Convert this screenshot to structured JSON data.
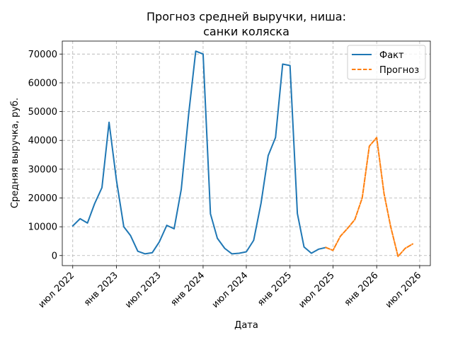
{
  "chart_data": {
    "type": "line",
    "title_line1": "Прогноз средней выручки, ниша:",
    "title_line2": "санки коляска",
    "xlabel": "Дата",
    "ylabel": "Средняя выручка, руб.",
    "grid": true,
    "legend_position": "top-right",
    "xlim": [
      "2022-05-18",
      "2026-08-15"
    ],
    "ylim": [
      -3500,
      74500
    ],
    "x_tick_dates": [
      "2022-07-01",
      "2023-01-01",
      "2023-07-01",
      "2024-01-01",
      "2024-07-01",
      "2025-01-01",
      "2025-07-01",
      "2026-01-01",
      "2026-07-01"
    ],
    "x_tick_labels": [
      "июл 2022",
      "янв 2023",
      "июл 2023",
      "янв 2024",
      "июл 2024",
      "янв 2025",
      "июл 2025",
      "янв 2026",
      "июл 2026"
    ],
    "y_ticks": [
      0,
      10000,
      20000,
      30000,
      40000,
      50000,
      60000,
      70000
    ],
    "y_tick_labels": [
      "0",
      "10000",
      "20000",
      "30000",
      "40000",
      "50000",
      "60000",
      "70000"
    ],
    "series": [
      {
        "name": "Факт",
        "color": "#1f77b4",
        "style": "solid",
        "x": [
          "2022-07-01",
          "2022-08-01",
          "2022-09-01",
          "2022-10-01",
          "2022-11-01",
          "2022-12-01",
          "2023-01-01",
          "2023-02-01",
          "2023-03-01",
          "2023-04-01",
          "2023-05-01",
          "2023-06-01",
          "2023-07-01",
          "2023-08-01",
          "2023-09-01",
          "2023-10-01",
          "2023-11-01",
          "2023-12-01",
          "2024-01-01",
          "2024-02-01",
          "2024-03-01",
          "2024-04-01",
          "2024-05-01",
          "2024-06-01",
          "2024-07-01",
          "2024-08-01",
          "2024-09-01",
          "2024-10-01",
          "2024-11-01",
          "2024-12-01",
          "2025-01-01",
          "2025-02-01",
          "2025-03-01",
          "2025-04-01",
          "2025-05-01",
          "2025-06-01"
        ],
        "values": [
          10300,
          12800,
          11300,
          18000,
          23600,
          46300,
          26200,
          10000,
          7000,
          1500,
          600,
          1000,
          4800,
          10500,
          9300,
          23000,
          49000,
          71000,
          70000,
          14500,
          6000,
          2500,
          600,
          800,
          1300,
          5300,
          18200,
          34700,
          41000,
          66500,
          66000,
          14600,
          3000,
          800,
          2200,
          2800
        ]
      },
      {
        "name": "Прогноз",
        "color": "#ff7f0e",
        "style": "dashed",
        "x": [
          "2025-06-01",
          "2025-07-01",
          "2025-08-01",
          "2025-09-01",
          "2025-10-01",
          "2025-11-01",
          "2025-12-01",
          "2026-01-01",
          "2026-02-01",
          "2026-03-01",
          "2026-04-01",
          "2026-05-01",
          "2026-06-01"
        ],
        "values": [
          2800,
          1800,
          6700,
          9500,
          12500,
          20000,
          38000,
          41000,
          21500,
          10000,
          -300,
          2500,
          4000
        ]
      }
    ]
  }
}
